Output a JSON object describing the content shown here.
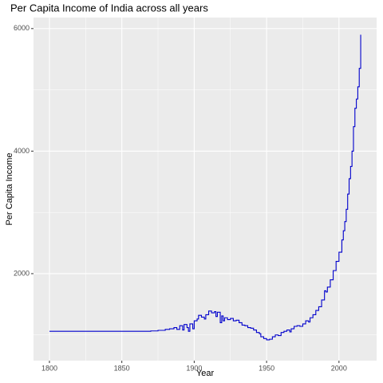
{
  "chart_data": {
    "type": "step",
    "title": "Per Capita Income of India across all years",
    "x_label": "Year",
    "y_label": "Per Capita Income",
    "x": [
      1800,
      1870,
      1875,
      1880,
      1883,
      1886,
      1888,
      1890,
      1892,
      1893,
      1895,
      1896,
      1897,
      1899,
      1900,
      1902,
      1903,
      1905,
      1907,
      1908,
      1910,
      1912,
      1914,
      1915,
      1916,
      1918,
      1919,
      1920,
      1921,
      1923,
      1925,
      1927,
      1929,
      1931,
      1933,
      1935,
      1937,
      1939,
      1941,
      1943,
      1945,
      1946,
      1948,
      1950,
      1952,
      1954,
      1956,
      1958,
      1960,
      1962,
      1964,
      1966,
      1967,
      1969,
      1971,
      1973,
      1975,
      1977,
      1979,
      1980,
      1982,
      1984,
      1986,
      1988,
      1990,
      1991,
      1992,
      1994,
      1996,
      1998,
      2000,
      2002,
      2003,
      2004,
      2005,
      2006,
      2007,
      2008,
      2009,
      2010,
      2011,
      2012,
      2013,
      2014,
      2015
    ],
    "series": [
      {
        "name": "Per Capita Income",
        "color": "#0000cc",
        "values": [
          1060,
          1065,
          1075,
          1090,
          1100,
          1120,
          1090,
          1150,
          1080,
          1170,
          1120,
          1060,
          1180,
          1100,
          1230,
          1260,
          1320,
          1290,
          1260,
          1330,
          1390,
          1360,
          1380,
          1300,
          1370,
          1200,
          1310,
          1230,
          1280,
          1250,
          1270,
          1230,
          1240,
          1200,
          1160,
          1150,
          1120,
          1110,
          1080,
          1040,
          1020,
          970,
          940,
          920,
          930,
          970,
          1000,
          990,
          1040,
          1060,
          1080,
          1050,
          1100,
          1140,
          1150,
          1140,
          1180,
          1230,
          1210,
          1280,
          1330,
          1400,
          1460,
          1570,
          1720,
          1700,
          1780,
          1900,
          2050,
          2200,
          2350,
          2550,
          2700,
          2850,
          3050,
          3300,
          3550,
          3750,
          4000,
          4400,
          4700,
          4850,
          5050,
          5350,
          5900
        ]
      }
    ],
    "xlim": [
      1789,
      2026
    ],
    "xticks": [
      1800,
      1850,
      1900,
      1950,
      2000
    ],
    "xminor": [
      1825,
      1875,
      1925,
      1975
    ],
    "ylim": [
      580,
      6180
    ],
    "yticks": [
      2000,
      4000,
      6000
    ],
    "yminor": [
      1000,
      3000,
      5000
    ],
    "grid": true
  }
}
